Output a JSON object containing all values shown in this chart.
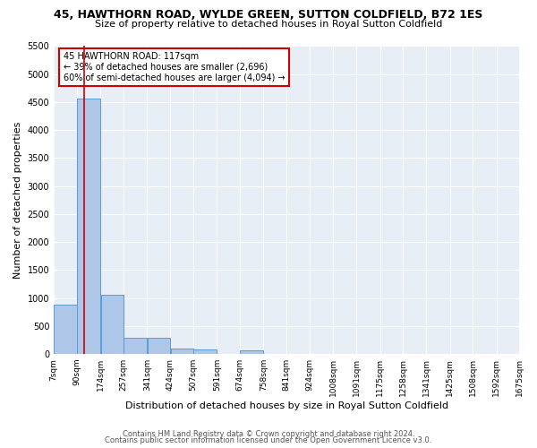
{
  "title1": "45, HAWTHORN ROAD, WYLDE GREEN, SUTTON COLDFIELD, B72 1ES",
  "title2": "Size of property relative to detached houses in Royal Sutton Coldfield",
  "xlabel": "Distribution of detached houses by size in Royal Sutton Coldfield",
  "ylabel": "Number of detached properties",
  "footer1": "Contains HM Land Registry data © Crown copyright and database right 2024.",
  "footer2": "Contains public sector information licensed under the Open Government Licence v3.0.",
  "annotation_title": "45 HAWTHORN ROAD: 117sqm",
  "annotation_line1": "← 39% of detached houses are smaller (2,696)",
  "annotation_line2": "60% of semi-detached houses are larger (4,094) →",
  "property_size_sqm": 117,
  "bar_color": "#aec6e8",
  "bar_edge_color": "#5b9bd5",
  "vline_color": "#cc0000",
  "annotation_box_color": "#cc0000",
  "bg_color": "#e8eef6",
  "grid_color": "#ffffff",
  "fig_bg_color": "#ffffff",
  "ylim": [
    0,
    5500
  ],
  "yticks": [
    0,
    500,
    1000,
    1500,
    2000,
    2500,
    3000,
    3500,
    4000,
    4500,
    5000,
    5500
  ],
  "bin_edges": [
    7,
    90,
    174,
    257,
    341,
    424,
    507,
    591,
    674,
    758,
    841,
    924,
    1008,
    1091,
    1175,
    1258,
    1341,
    1425,
    1508,
    1592,
    1675
  ],
  "bar_heights": [
    880,
    4560,
    1060,
    290,
    290,
    90,
    80,
    0,
    70,
    0,
    0,
    0,
    0,
    0,
    0,
    0,
    0,
    0,
    0,
    0
  ],
  "tick_labels": [
    "7sqm",
    "90sqm",
    "174sqm",
    "257sqm",
    "341sqm",
    "424sqm",
    "507sqm",
    "591sqm",
    "674sqm",
    "758sqm",
    "841sqm",
    "924sqm",
    "1008sqm",
    "1091sqm",
    "1175sqm",
    "1258sqm",
    "1341sqm",
    "1425sqm",
    "1508sqm",
    "1592sqm",
    "1675sqm"
  ],
  "title1_fontsize": 9,
  "title2_fontsize": 8,
  "ylabel_fontsize": 8,
  "xlabel_fontsize": 8,
  "tick_fontsize": 6.5,
  "ytick_fontsize": 7,
  "annotation_fontsize": 7,
  "footer_fontsize": 6
}
